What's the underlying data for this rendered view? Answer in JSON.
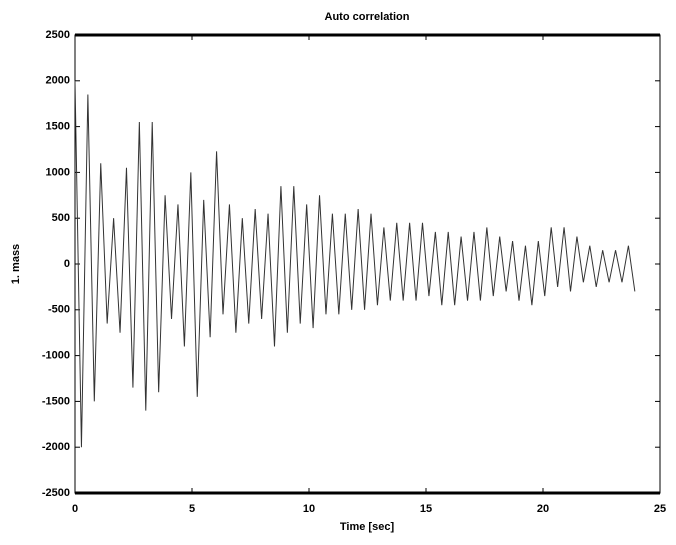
{
  "chart_data": {
    "type": "line",
    "title": "Auto correlation",
    "x_label": "Time [sec]",
    "y_label": "1. mass",
    "xlim": [
      0,
      25
    ],
    "xticks": [
      0,
      5,
      10,
      15,
      20,
      25
    ],
    "ylim": [
      -2500,
      2500
    ],
    "yticks": [
      -2500,
      -2000,
      -1500,
      -1000,
      -500,
      0,
      500,
      1000,
      1500,
      2000,
      2500
    ],
    "grid": false,
    "x": [
      0,
      0.275,
      0.55,
      0.825,
      1.1,
      1.375,
      1.65,
      1.925,
      2.2,
      2.475,
      2.75,
      3.025,
      3.3,
      3.575,
      3.85,
      4.125,
      4.4,
      4.675,
      4.95,
      5.225,
      5.5,
      5.775,
      6.05,
      6.325,
      6.6,
      6.875,
      7.15,
      7.425,
      7.7,
      7.975,
      8.25,
      8.525,
      8.8,
      9.075,
      9.35,
      9.625,
      9.9,
      10.175,
      10.45,
      10.725,
      11,
      11.275,
      11.55,
      11.825,
      12.1,
      12.375,
      12.65,
      12.925,
      13.2,
      13.475,
      13.75,
      14.025,
      14.3,
      14.575,
      14.85,
      15.125,
      15.4,
      15.675,
      15.95,
      16.225,
      16.5,
      16.775,
      17.05,
      17.325,
      17.6,
      17.875,
      18.15,
      18.425,
      18.7,
      18.975,
      19.25,
      19.525,
      19.8,
      20.075,
      20.35,
      20.625,
      20.9,
      21.175,
      21.45,
      21.725,
      22,
      22.275,
      22.55,
      22.825,
      23.1,
      23.375,
      23.65,
      23.925
    ],
    "series": [
      {
        "color": "#333333",
        "values": [
          2000,
          -2000,
          1850,
          -1500,
          1100,
          -650,
          500,
          -750,
          1050,
          -1350,
          1550,
          -1600,
          1550,
          -1400,
          750,
          -600,
          650,
          -900,
          1000,
          -1450,
          700,
          -800,
          1230,
          -550,
          650,
          -750,
          500,
          -650,
          600,
          -600,
          550,
          -900,
          850,
          -750,
          850,
          -650,
          650,
          -700,
          750,
          -550,
          550,
          -550,
          550,
          -500,
          600,
          -500,
          550,
          -450,
          400,
          -400,
          450,
          -400,
          450,
          -400,
          450,
          -350,
          350,
          -450,
          350,
          -450,
          300,
          -400,
          350,
          -400,
          400,
          -350,
          300,
          -300,
          250,
          -400,
          200,
          -450,
          250,
          -350,
          400,
          -250,
          400,
          -300,
          300,
          -200,
          200,
          -250,
          150,
          -200,
          150,
          -200,
          200,
          -300
        ]
      }
    ]
  }
}
